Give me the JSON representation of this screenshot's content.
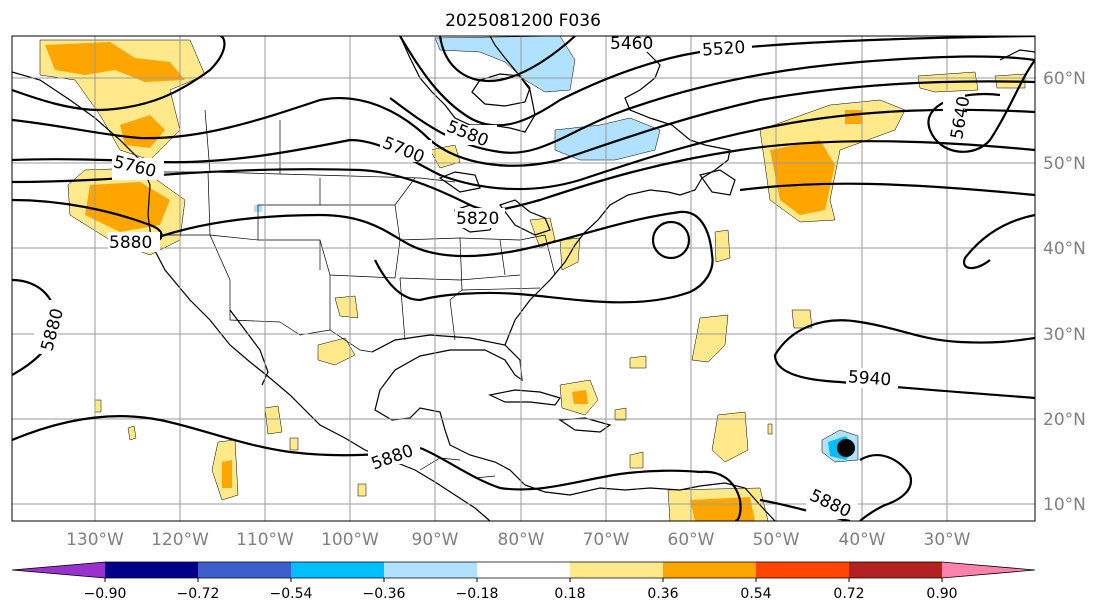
{
  "title": "2025081200 F036",
  "lon_labels": [
    "130°W",
    "120°W",
    "110°W",
    "100°W",
    "90°W",
    "80°W",
    "70°W",
    "60°W",
    "50°W",
    "40°W",
    "30°W"
  ],
  "lat_labels": [
    "60°N",
    "50°N",
    "40°N",
    "30°N",
    "20°N",
    "10°N"
  ],
  "contour_labels": [
    "5460",
    "5520",
    "5580",
    "5640",
    "5700",
    "5760",
    "5820",
    "5880",
    "5880",
    "5880",
    "5880",
    "5940"
  ],
  "colorbar": {
    "ticks": [
      "−0.90",
      "−0.72",
      "−0.54",
      "−0.36",
      "−0.18",
      "0.18",
      "0.36",
      "0.54",
      "0.72",
      "0.90"
    ],
    "colors": [
      "#9932cc",
      "#00008b",
      "#3a5fcd",
      "#00bfff",
      "#b0e2ff",
      "#ffffff",
      "#ffe98a",
      "#ffa500",
      "#ff4500",
      "#b22222",
      "#ff82ab"
    ]
  }
}
